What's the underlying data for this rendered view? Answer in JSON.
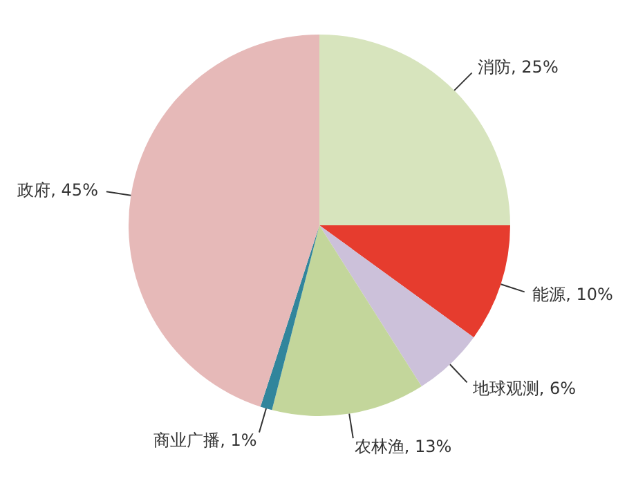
{
  "chart_data": {
    "type": "pie",
    "categories": [
      "消防",
      "能源",
      "地球观测",
      "农林渔",
      "商业广播",
      "政府"
    ],
    "values": [
      25,
      10,
      6,
      13,
      1,
      45
    ],
    "value_labels": [
      "25%",
      "10%",
      "6%",
      "13%",
      "1%",
      "45%"
    ],
    "colors": [
      "#d7e4bd",
      "#e63c2e",
      "#ccc1da",
      "#c3d69b",
      "#31859c",
      "#e6b9b8"
    ]
  }
}
